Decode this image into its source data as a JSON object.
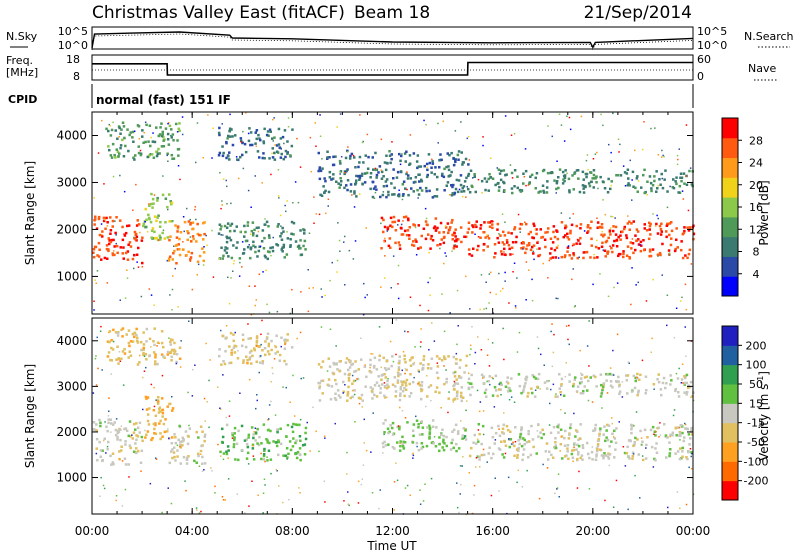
{
  "header": {
    "station": "Christmas Valley East (fitACF)",
    "beam": "Beam 18",
    "date": "21/Sep/2014"
  },
  "noise_panel": {
    "left_label": "N.Sky",
    "left_ticks": [
      "10^5",
      "10^0"
    ],
    "right_ticks": [
      "10^5",
      "10^0"
    ],
    "right_label": "N.Search"
  },
  "freq_panel": {
    "left_label_1": "Freq.",
    "left_label_2": "[MHz]",
    "left_ticks": [
      "18",
      "8"
    ],
    "right_ticks": [
      "60",
      "0"
    ],
    "right_label": "Nave"
  },
  "cpid": {
    "label": "CPID",
    "value": "normal (fast) 151 IF"
  },
  "chart_data": [
    {
      "type": "line",
      "name": "noise",
      "x_unit": "hours UT",
      "series": [
        {
          "x": [
            0,
            0.1,
            3.5,
            5.5,
            5.6,
            8,
            12,
            16,
            19.9,
            20,
            20.1,
            24
          ],
          "y": [
            0,
            3.5,
            4,
            3.2,
            2.5,
            2.3,
            1.5,
            1.3,
            1.4,
            0.2,
            1.4,
            2.4
          ]
        }
      ]
    },
    {
      "type": "line",
      "name": "frequency",
      "x_unit": "hours UT",
      "x": [
        0,
        3,
        3.01,
        15,
        15.01,
        24
      ],
      "y": [
        14.5,
        14.5,
        10,
        10,
        15,
        15
      ],
      "ylim": [
        8,
        18
      ]
    },
    {
      "type": "heatmap",
      "name": "power",
      "xlabel": "Time UT",
      "ylabel": "Slant Range [km]",
      "x_ticks": [
        "00:00",
        "04:00",
        "08:00",
        "12:00",
        "16:00",
        "20:00",
        "00:00"
      ],
      "xlim": [
        0,
        24
      ],
      "y_ticks": [
        1000,
        2000,
        3000,
        4000
      ],
      "ylim": [
        200,
        4500
      ],
      "colorbar_label": "Power [dB]",
      "colorbar_ticks": [
        28,
        24,
        20,
        16,
        12,
        8,
        4
      ],
      "colorbar_range": [
        0,
        32
      ],
      "scatter_regions": [
        {
          "x": [
            0.0,
            2.0
          ],
          "y": [
            1300,
            2300
          ],
          "value": 28
        },
        {
          "x": [
            2.0,
            3.2
          ],
          "y": [
            1800,
            2800
          ],
          "value": 16
        },
        {
          "x": [
            3.0,
            4.5
          ],
          "y": [
            1300,
            2200
          ],
          "value": 24
        },
        {
          "x": [
            0.5,
            3.5
          ],
          "y": [
            3500,
            4300
          ],
          "value": 12
        },
        {
          "x": [
            5.0,
            8.0
          ],
          "y": [
            3500,
            4200
          ],
          "value": 8
        },
        {
          "x": [
            5.0,
            8.5
          ],
          "y": [
            1400,
            2200
          ],
          "value": 10
        },
        {
          "x": [
            9.0,
            15.0
          ],
          "y": [
            2700,
            3700
          ],
          "value": 8
        },
        {
          "x": [
            11.5,
            15.0
          ],
          "y": [
            1600,
            2300
          ],
          "value": 28
        },
        {
          "x": [
            15.0,
            24.0
          ],
          "y": [
            1400,
            2200
          ],
          "value": 28
        },
        {
          "x": [
            15.0,
            24.0
          ],
          "y": [
            2800,
            3300
          ],
          "value": 10
        }
      ]
    },
    {
      "type": "heatmap",
      "name": "velocity",
      "xlabel": "Time UT",
      "ylabel": "Slant Range [km]",
      "x_ticks": [
        "00:00",
        "04:00",
        "08:00",
        "12:00",
        "16:00",
        "20:00",
        "00:00"
      ],
      "xlim": [
        0,
        24
      ],
      "y_ticks": [
        1000,
        2000,
        3000,
        4000
      ],
      "ylim": [
        200,
        4500
      ],
      "colorbar_label": "Velocity [m s^-1]",
      "colorbar_ticks": [
        200,
        100,
        50,
        15,
        -15,
        -50,
        -100,
        -200
      ],
      "colorbar_range": [
        -250,
        250
      ],
      "scatter_regions": [
        {
          "x": [
            0.0,
            2.0
          ],
          "y": [
            1300,
            2300
          ],
          "value": -10
        },
        {
          "x": [
            2.0,
            3.2
          ],
          "y": [
            1800,
            2800
          ],
          "value": -80
        },
        {
          "x": [
            3.0,
            4.5
          ],
          "y": [
            1300,
            2200
          ],
          "value": -5
        },
        {
          "x": [
            0.5,
            3.5
          ],
          "y": [
            3500,
            4300
          ],
          "value": -60
        },
        {
          "x": [
            5.0,
            8.0
          ],
          "y": [
            3500,
            4200
          ],
          "value": -40
        },
        {
          "x": [
            5.0,
            8.5
          ],
          "y": [
            1400,
            2200
          ],
          "value": 60
        },
        {
          "x": [
            9.0,
            15.0
          ],
          "y": [
            2700,
            3700
          ],
          "value": -30
        },
        {
          "x": [
            11.5,
            15.0
          ],
          "y": [
            1600,
            2300
          ],
          "value": 40
        },
        {
          "x": [
            15.0,
            24.0
          ],
          "y": [
            1400,
            2200
          ],
          "value": 0
        },
        {
          "x": [
            15.0,
            24.0
          ],
          "y": [
            2800,
            3300
          ],
          "value": 5
        }
      ]
    }
  ]
}
